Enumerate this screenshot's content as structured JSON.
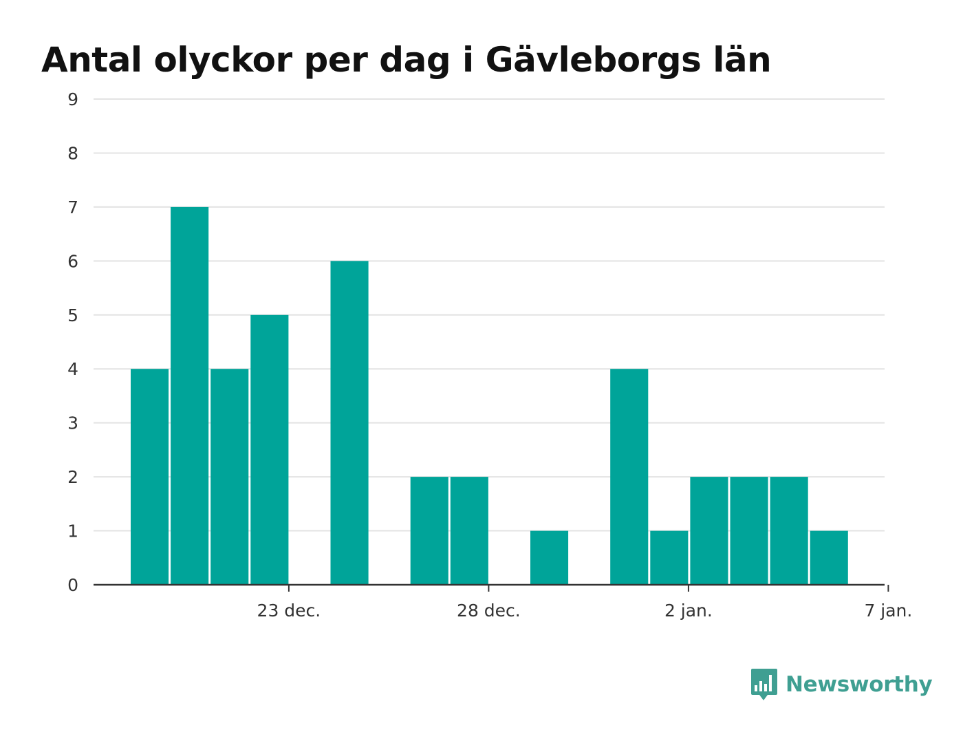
{
  "chart_data": {
    "type": "bar",
    "title": "Antal olyckor per dag i Gävleborgs län",
    "x": [
      "2021-12-20",
      "2021-12-21",
      "2021-12-22",
      "2021-12-23",
      "2021-12-24",
      "2021-12-25",
      "2021-12-26",
      "2021-12-27",
      "2021-12-28",
      "2021-12-29",
      "2021-12-30",
      "2021-12-31",
      "2022-01-01",
      "2022-01-02",
      "2022-01-03",
      "2022-01-04",
      "2022-01-05",
      "2022-01-06",
      "2022-01-07"
    ],
    "values": [
      4,
      7,
      4,
      5,
      0,
      6,
      0,
      2,
      2,
      0,
      1,
      0,
      4,
      1,
      2,
      2,
      2,
      1,
      0
    ],
    "x_ticks": [
      {
        "date": "2021-12-23",
        "label": "23 dec."
      },
      {
        "date": "2021-12-28",
        "label": "28 dec."
      },
      {
        "date": "2022-01-02",
        "label": "2 jan."
      },
      {
        "date": "2022-01-07",
        "label": "7 jan."
      }
    ],
    "y_ticks": [
      0,
      1,
      2,
      3,
      4,
      5,
      6,
      7,
      8,
      9
    ],
    "ylim": [
      0,
      9
    ],
    "grid": true,
    "legend": "none",
    "bar_color": "#00a499",
    "grid_color": "#e3e3e3",
    "axis_color": "#333333"
  },
  "brand": {
    "name": "Newsworthy",
    "icon": "newsworthy-logo-icon",
    "color": "#3f9f92"
  }
}
